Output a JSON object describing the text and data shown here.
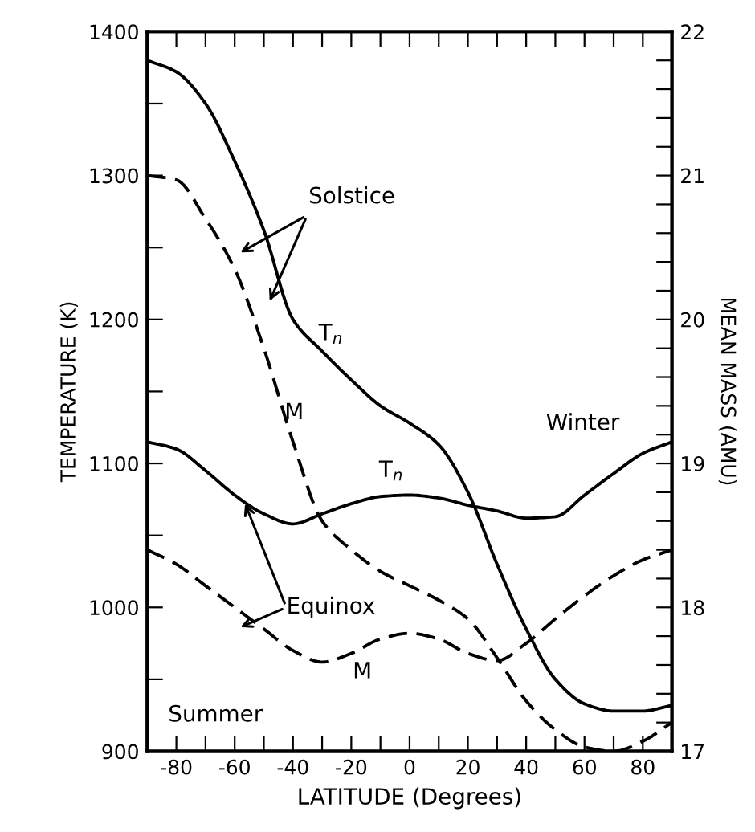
{
  "chart_data": {
    "type": "line",
    "xlabel": "LATITUDE (Degrees)",
    "ylabel": "TEMPERATURE (K)",
    "y2label": "MEAN MASS (AMU)",
    "x": [
      -90,
      -80,
      -70,
      -60,
      -50,
      -40,
      -30,
      -20,
      -10,
      0,
      10,
      20,
      30,
      40,
      50,
      60,
      70,
      80,
      90
    ],
    "series": [
      {
        "color": "#000000",
        "line_style": "solid",
        "values": [
          1380,
          1372,
          1350,
          1310,
          1262,
          1200,
          1178,
          1158,
          1140,
          1128,
          1113,
          1080,
          1030,
          985,
          950,
          933,
          928,
          928,
          932
        ]
      },
      {
        "color": "#000000",
        "line_style": "dashed",
        "axis": "y2",
        "values": [
          21.0,
          20.97,
          20.7,
          20.35,
          19.8,
          19.15,
          18.6,
          18.4,
          18.25,
          18.15,
          18.05,
          17.92,
          17.65,
          17.35,
          17.15,
          17.03,
          17.0,
          17.07,
          17.2
        ]
      },
      {
        "color": "#000000",
        "line_style": "solid",
        "values": [
          1115,
          1110,
          1095,
          1078,
          1065,
          1058,
          1065,
          1072,
          1077,
          1078,
          1076,
          1071,
          1067,
          1062,
          1063,
          1078,
          1093,
          1107,
          1115
        ]
      },
      {
        "color": "#000000",
        "line_style": "dashed",
        "axis": "y2",
        "values": [
          18.4,
          18.3,
          18.15,
          18.0,
          17.85,
          17.7,
          17.62,
          17.68,
          17.78,
          17.82,
          17.78,
          17.68,
          17.63,
          17.75,
          17.92,
          18.08,
          18.22,
          18.33,
          18.4
        ]
      }
    ],
    "xlim": [
      -90,
      90
    ],
    "xticks": [
      {
        "value": -90,
        "label": null
      },
      -80,
      {
        "value": -70,
        "label": null
      },
      -60,
      {
        "value": -50,
        "label": null
      },
      -40,
      {
        "value": -30,
        "label": null
      },
      -20,
      {
        "value": -10,
        "label": null
      },
      0,
      {
        "value": 10,
        "label": null
      },
      20,
      {
        "value": 30,
        "label": null
      },
      40,
      {
        "value": 50,
        "label": null
      },
      60,
      {
        "value": 70,
        "label": null
      },
      80,
      {
        "value": 90,
        "label": null
      }
    ],
    "ylim": [
      900,
      1400
    ],
    "yticks": [
      900,
      {
        "value": 950,
        "label": null
      },
      1000,
      {
        "value": 1050,
        "label": null
      },
      1100,
      {
        "value": 1150,
        "label": null
      },
      1200,
      {
        "value": 1250,
        "label": null
      },
      1300,
      {
        "value": 1350,
        "label": null
      },
      1400
    ],
    "y2lim": [
      17,
      22
    ],
    "y2ticks": [
      17,
      {
        "value": 17.2,
        "label": null
      },
      {
        "value": 17.4,
        "label": null
      },
      {
        "value": 17.6,
        "label": null
      },
      {
        "value": 17.8,
        "label": null
      },
      18,
      {
        "value": 18.2,
        "label": null
      },
      {
        "value": 18.4,
        "label": null
      },
      {
        "value": 18.6,
        "label": null
      },
      {
        "value": 18.8,
        "label": null
      },
      19,
      {
        "value": 19.2,
        "label": null
      },
      {
        "value": 19.4,
        "label": null
      },
      {
        "value": 19.6,
        "label": null
      },
      {
        "value": 19.8,
        "label": null
      },
      20,
      {
        "value": 20.2,
        "label": null
      },
      {
        "value": 20.4,
        "label": null
      },
      {
        "value": 20.6,
        "label": null
      },
      {
        "value": 20.8,
        "label": null
      },
      21,
      {
        "value": 21.2,
        "label": null
      },
      {
        "value": 21.4,
        "label": null
      },
      {
        "value": 21.6,
        "label": null
      },
      {
        "value": 21.8,
        "label": null
      },
      22
    ],
    "grid": false,
    "legend": false,
    "marker": "none",
    "annotations": [
      "Solstice",
      "T$_{n}$",
      "M",
      "Winter",
      "T$_{n}$",
      {
        "text": "Equinox",
        "x": -57,
        "y": 1075
      },
      "M",
      "Summer"
    ]
  }
}
